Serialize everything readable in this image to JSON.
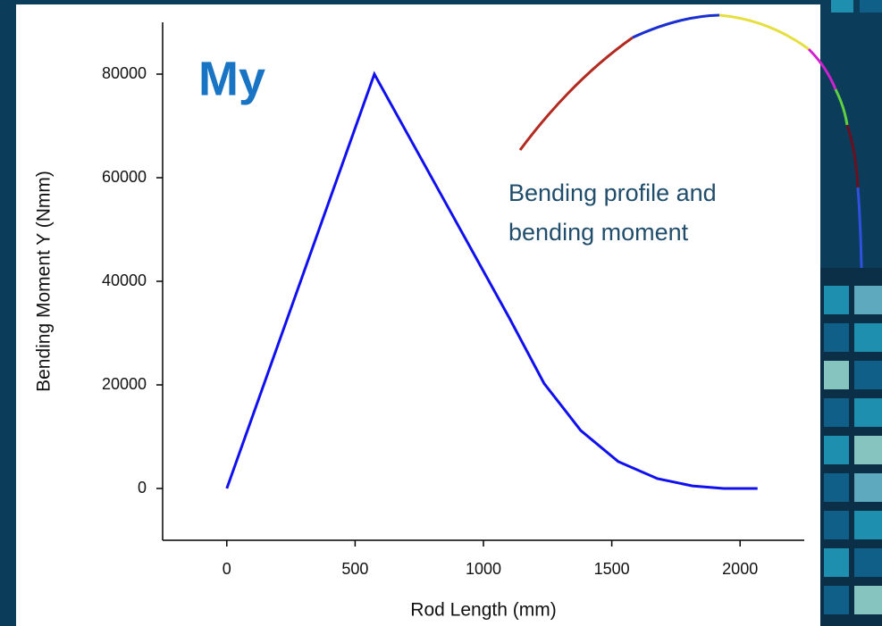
{
  "chart_data": {
    "type": "line",
    "x_label": "Rod Length (mm)",
    "y_label": "Bending Moment Y (Nmm)",
    "annotations": [
      "My",
      "Bending profile and",
      "bending moment"
    ],
    "xlim": [
      -250,
      2250
    ],
    "xticks": [
      0,
      500,
      1000,
      1500,
      2000
    ],
    "ylim": [
      -10000,
      90000
    ],
    "yticks": [
      0,
      20000,
      40000,
      60000,
      80000
    ],
    "series": [
      {
        "color": "#1010ee",
        "x": [
          0,
          575,
          1100,
          1236,
          1379,
          1525,
          1678,
          1814,
          1936,
          2068
        ],
        "values": [
          0,
          80000,
          33000,
          20300,
          11200,
          5200,
          1900,
          500,
          0,
          0
        ]
      }
    ]
  }
}
